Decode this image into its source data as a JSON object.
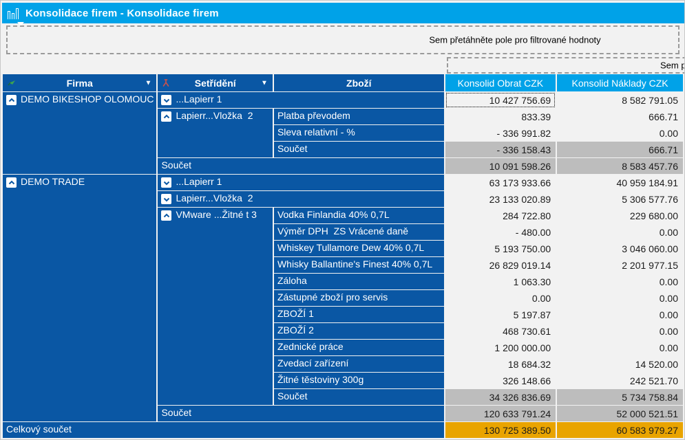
{
  "window": {
    "title": "Konsolidace firem - Konsolidace firem"
  },
  "colors": {
    "accent": "#00A2E8",
    "row_blue": "#0A57A4",
    "cell_bg": "#F2F2F2",
    "subtotal_gray": "#BDBDBD",
    "grand_total_orange": "#E9A400"
  },
  "drop_zones": {
    "filter_hint": "Sem přetáhněte pole pro filtrované hodnoty",
    "column_hint": "Sem přetáhněte pole"
  },
  "grid": {
    "headers": [
      {
        "label": "Firma"
      },
      {
        "label": "Setřídění"
      },
      {
        "label": "Zboží"
      },
      {
        "label": "Konsolid Obrat CZK"
      },
      {
        "label": "Konsolid Náklady CZK"
      }
    ],
    "rows": [
      {
        "cells": [
          {
            "text": "DEMO BIKESHOP OLOMOUC",
            "rowspan": 5,
            "icon": "collapse"
          },
          {
            "text": "...Lapierr 1",
            "colspan": 2,
            "icon": "expand"
          },
          {
            "text": "10 427 756.69",
            "kind": "val",
            "selected": true
          },
          {
            "text": "8 582 791.05",
            "kind": "val"
          }
        ]
      },
      {
        "cells": [
          {
            "text": "Lapierr...Vložka  2",
            "rowspan": 3,
            "icon": "collapse"
          },
          {
            "text": "Platba převodem"
          },
          {
            "text": "833.39",
            "kind": "val"
          },
          {
            "text": "666.71",
            "kind": "val"
          }
        ]
      },
      {
        "cells": [
          {
            "text": "Sleva relativní - %"
          },
          {
            "text": "- 336 991.82",
            "kind": "val"
          },
          {
            "text": "0.00",
            "kind": "val"
          }
        ]
      },
      {
        "cells": [
          {
            "text": "Součet"
          },
          {
            "text": "- 336 158.43",
            "kind": "val-gray"
          },
          {
            "text": "666.71",
            "kind": "val-gray"
          }
        ]
      },
      {
        "cells": [
          {
            "text": "Součet",
            "colspan": 2
          },
          {
            "text": "10 091 598.26",
            "kind": "val-gray"
          },
          {
            "text": "8 583 457.76",
            "kind": "val-gray"
          }
        ]
      },
      {
        "cells": [
          {
            "text": "DEMO TRADE",
            "rowspan": 15,
            "icon": "collapse"
          },
          {
            "text": "...Lapierr 1",
            "colspan": 2,
            "icon": "expand"
          },
          {
            "text": "63 173 933.66",
            "kind": "val"
          },
          {
            "text": "40 959 184.91",
            "kind": "val"
          }
        ]
      },
      {
        "cells": [
          {
            "text": "Lapierr...Vložka  2",
            "colspan": 2,
            "icon": "expand"
          },
          {
            "text": "23 133 020.89",
            "kind": "val"
          },
          {
            "text": "5 306 577.76",
            "kind": "val"
          }
        ]
      },
      {
        "cells": [
          {
            "text": "VMware ...Žitné t 3",
            "rowspan": 12,
            "icon": "collapse"
          },
          {
            "text": "Vodka Finlandia 40% 0,7L"
          },
          {
            "text": "284 722.80",
            "kind": "val"
          },
          {
            "text": "229 680.00",
            "kind": "val"
          }
        ]
      },
      {
        "cells": [
          {
            "text": "Výměr DPH  ZS Vrácené daně"
          },
          {
            "text": "- 480.00",
            "kind": "val"
          },
          {
            "text": "0.00",
            "kind": "val"
          }
        ]
      },
      {
        "cells": [
          {
            "text": "Whiskey Tullamore Dew 40% 0,7L"
          },
          {
            "text": "5 193 750.00",
            "kind": "val"
          },
          {
            "text": "3 046 060.00",
            "kind": "val"
          }
        ]
      },
      {
        "cells": [
          {
            "text": "Whisky Ballantine's Finest 40% 0,7L"
          },
          {
            "text": "26 829 019.14",
            "kind": "val"
          },
          {
            "text": "2 201 977.15",
            "kind": "val"
          }
        ]
      },
      {
        "cells": [
          {
            "text": "Záloha"
          },
          {
            "text": "1 063.30",
            "kind": "val"
          },
          {
            "text": "0.00",
            "kind": "val"
          }
        ]
      },
      {
        "cells": [
          {
            "text": "Zástupné zboží pro servis"
          },
          {
            "text": "0.00",
            "kind": "val"
          },
          {
            "text": "0.00",
            "kind": "val"
          }
        ]
      },
      {
        "cells": [
          {
            "text": "ZBOŽÍ 1"
          },
          {
            "text": "5 197.87",
            "kind": "val"
          },
          {
            "text": "0.00",
            "kind": "val"
          }
        ]
      },
      {
        "cells": [
          {
            "text": "ZBOŽÍ 2"
          },
          {
            "text": "468 730.61",
            "kind": "val"
          },
          {
            "text": "0.00",
            "kind": "val"
          }
        ]
      },
      {
        "cells": [
          {
            "text": "Zednické práce"
          },
          {
            "text": "1 200 000.00",
            "kind": "val"
          },
          {
            "text": "0.00",
            "kind": "val"
          }
        ]
      },
      {
        "cells": [
          {
            "text": "Zvedací zařízení"
          },
          {
            "text": "18 684.32",
            "kind": "val"
          },
          {
            "text": "14 520.00",
            "kind": "val"
          }
        ]
      },
      {
        "cells": [
          {
            "text": "Žitné těstoviny 300g"
          },
          {
            "text": "326 148.66",
            "kind": "val"
          },
          {
            "text": "242 521.70",
            "kind": "val"
          }
        ]
      },
      {
        "cells": [
          {
            "text": "Součet"
          },
          {
            "text": "34 326 836.69",
            "kind": "val-gray"
          },
          {
            "text": "5 734 758.84",
            "kind": "val-gray"
          }
        ]
      },
      {
        "cells": [
          {
            "text": "Součet",
            "colspan": 2
          },
          {
            "text": "120 633 791.24",
            "kind": "val-gray"
          },
          {
            "text": "52 000 521.51",
            "kind": "val-gray"
          }
        ]
      },
      {
        "cells": [
          {
            "text": "Celkový součet",
            "colspan": 3
          },
          {
            "text": "130 725 389.50",
            "kind": "val-orange"
          },
          {
            "text": "60 583 979.27",
            "kind": "val-orange"
          }
        ]
      }
    ]
  }
}
